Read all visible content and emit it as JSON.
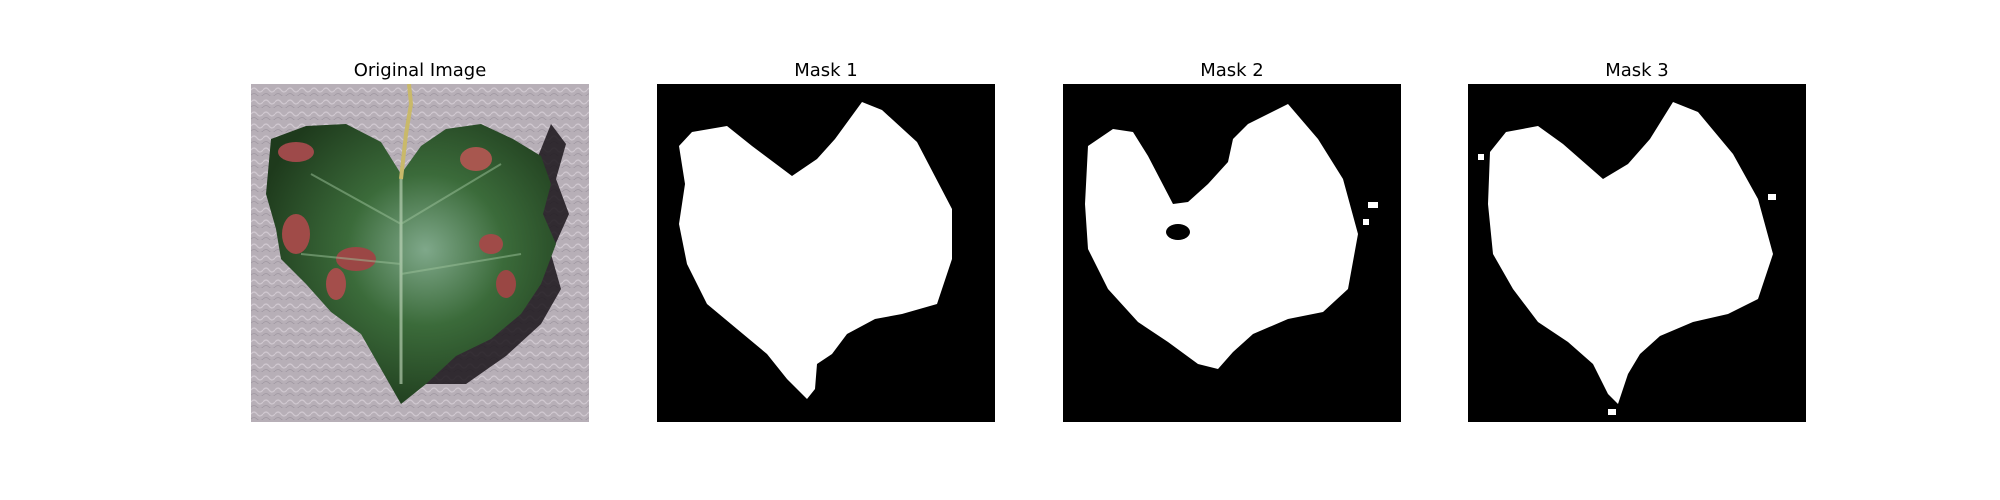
{
  "figure": {
    "panels": [
      {
        "title": "Original Image",
        "content": "photo of a green leaf with red patches on a textured light purple-gray background"
      },
      {
        "title": "Mask 1",
        "content": "binary segmentation mask, white leaf shape on black"
      },
      {
        "title": "Mask 2",
        "content": "binary segmentation mask, white leaf shape on black"
      },
      {
        "title": "Mask 3",
        "content": "binary segmentation mask, white leaf shape on black"
      }
    ]
  },
  "colors": {
    "mask_background": "#000000",
    "mask_foreground": "#ffffff",
    "photo_background": "#b8b0b8",
    "leaf_green": "#2f5a2a",
    "leaf_red": "#a0474a"
  }
}
